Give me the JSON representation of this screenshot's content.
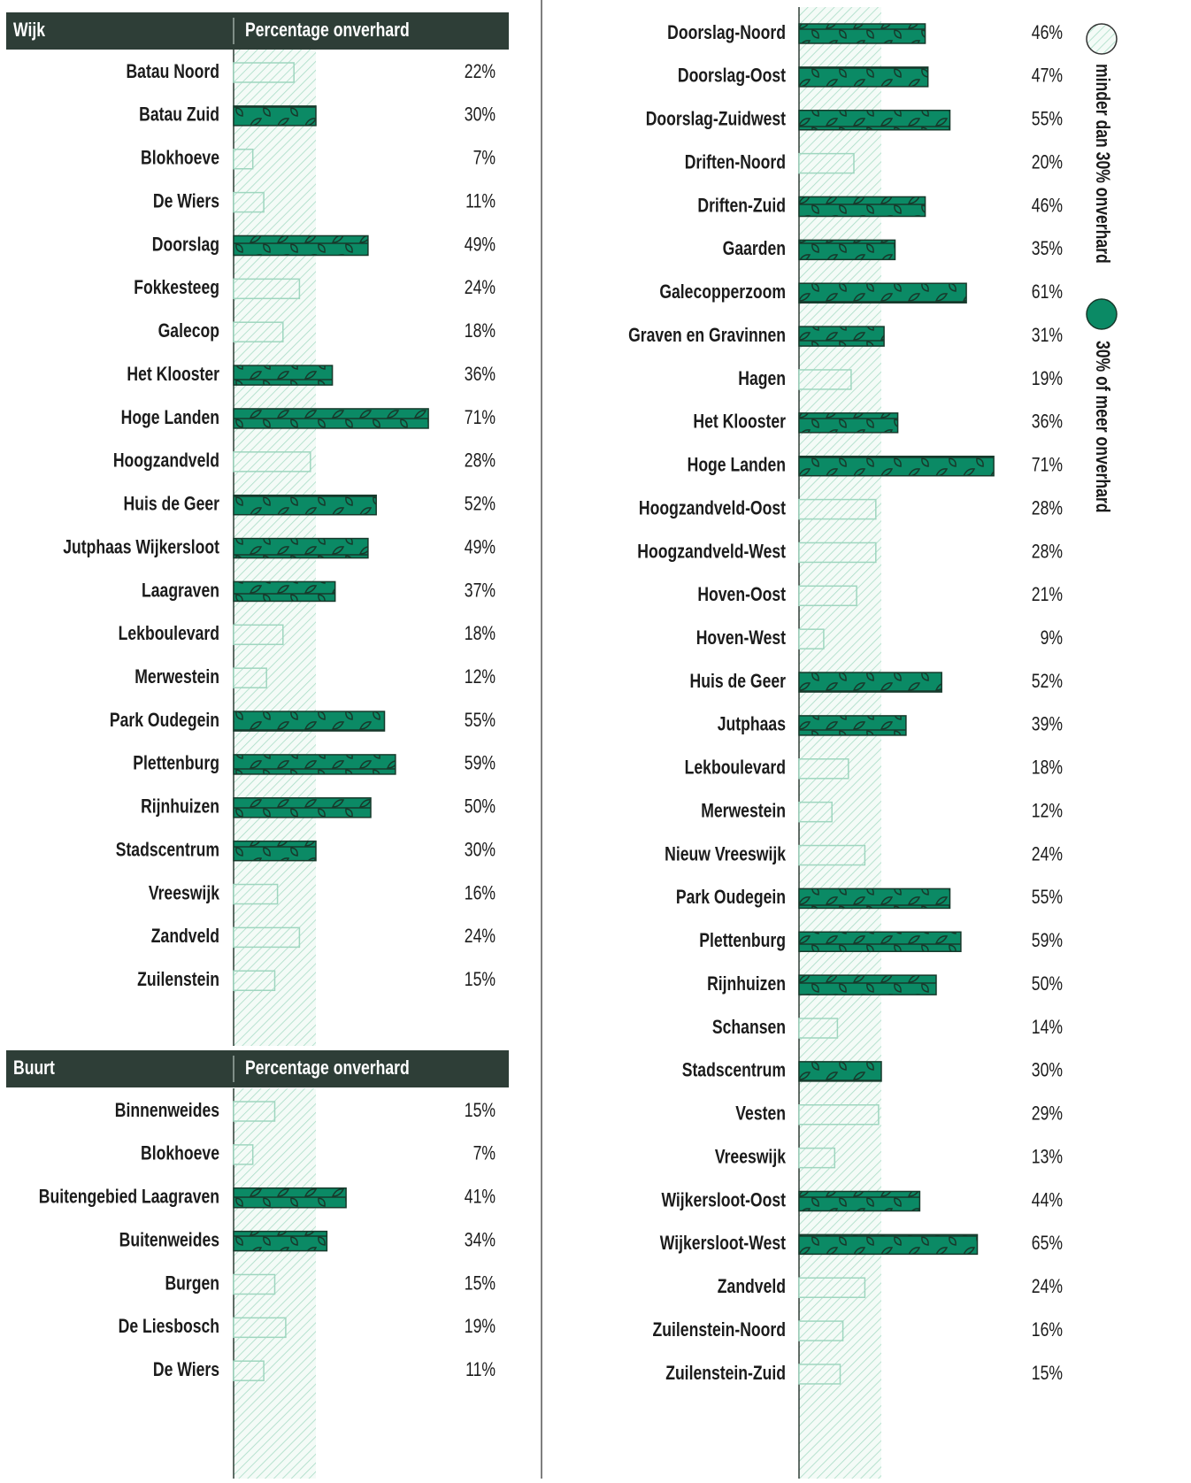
{
  "legend": [
    {
      "label": "minder dan 30% onverhard",
      "color": "#9fd6bf"
    },
    {
      "label": "30% of meer onverhard",
      "color": "#0b8a65"
    }
  ],
  "chart_data": [
    {
      "type": "bar",
      "orientation": "horizontal",
      "header": [
        "Wijk",
        "Percentage onverhard"
      ],
      "xlim": [
        0,
        100
      ],
      "threshold": 30,
      "categories": [
        "Batau Noord",
        "Batau Zuid",
        "Blokhoeve",
        "De Wiers",
        "Doorslag",
        "Fokkesteeg",
        "Galecop",
        "Het Klooster",
        "Hoge Landen",
        "Hoogzandveld",
        "Huis de Geer",
        "Jutphaas Wijkersloot",
        "Laagraven",
        "Lekboulevard",
        "Merwestein",
        "Park Oudegein",
        "Plettenburg",
        "Rijnhuizen",
        "Stadscentrum",
        "Vreeswijk",
        "Zandveld",
        "Zuilenstein"
      ],
      "values": [
        22,
        30,
        7,
        11,
        49,
        24,
        18,
        36,
        71,
        28,
        52,
        49,
        37,
        18,
        12,
        55,
        59,
        50,
        30,
        16,
        24,
        15
      ],
      "value_labels": [
        "22%",
        "30%",
        "7%",
        "11%",
        "49%",
        "24%",
        "18%",
        "36%",
        "71%",
        "28%",
        "52%",
        "49%",
        "37%",
        "18%",
        "12%",
        "55%",
        "59%",
        "50%",
        "30%",
        "16%",
        "24%",
        "15%"
      ]
    },
    {
      "type": "bar",
      "orientation": "horizontal",
      "header": [
        "Buurt",
        "Percentage onverhard"
      ],
      "xlim": [
        0,
        100
      ],
      "threshold": 30,
      "categories": [
        "Binnenweides",
        "Blokhoeve",
        "Buitengebied Laagraven",
        "Buitenweides",
        "Burgen",
        "De Liesbosch",
        "De Wiers",
        "Doorslag-Noord",
        "Doorslag-Oost",
        "Doorslag-Zuidwest",
        "Driften-Noord",
        "Driften-Zuid",
        "Gaarden",
        "Galecopperzoom",
        "Graven en Gravinnen",
        "Hagen",
        "Het Klooster",
        "Hoge Landen",
        "Hoogzandveld-Oost",
        "Hoogzandveld-West",
        "Hoven-Oost",
        "Hoven-West",
        "Huis de Geer",
        "Jutphaas",
        "Lekboulevard",
        "Merwestein",
        "Nieuw Vreeswijk",
        "Park Oudegein",
        "Plettenburg",
        "Rijnhuizen",
        "Schansen",
        "Stadscentrum",
        "Vesten",
        "Vreeswijk",
        "Wijkersloot-Oost",
        "Wijkersloot-West",
        "Zandveld",
        "Zuilenstein-Noord",
        "Zuilenstein-Zuid"
      ],
      "values": [
        15,
        7,
        41,
        34,
        15,
        19,
        11,
        46,
        47,
        55,
        20,
        46,
        35,
        61,
        31,
        19,
        36,
        71,
        28,
        28,
        21,
        9,
        52,
        39,
        18,
        12,
        24,
        55,
        59,
        50,
        14,
        30,
        29,
        13,
        44,
        65,
        24,
        16,
        15
      ],
      "value_labels": [
        "15%",
        "7%",
        "41%",
        "34%",
        "15%",
        "19%",
        "11%",
        "46%",
        "47%",
        "55%",
        "20%",
        "46%",
        "35%",
        "61%",
        "31%",
        "19%",
        "36%",
        "71%",
        "28%",
        "28%",
        "21%",
        "9%",
        "52%",
        "39%",
        "18%",
        "12%",
        "24%",
        "55%",
        "59%",
        "50%",
        "14%",
        "30%",
        "29%",
        "13%",
        "44%",
        "65%",
        "24%",
        "16%",
        "15%"
      ]
    }
  ]
}
